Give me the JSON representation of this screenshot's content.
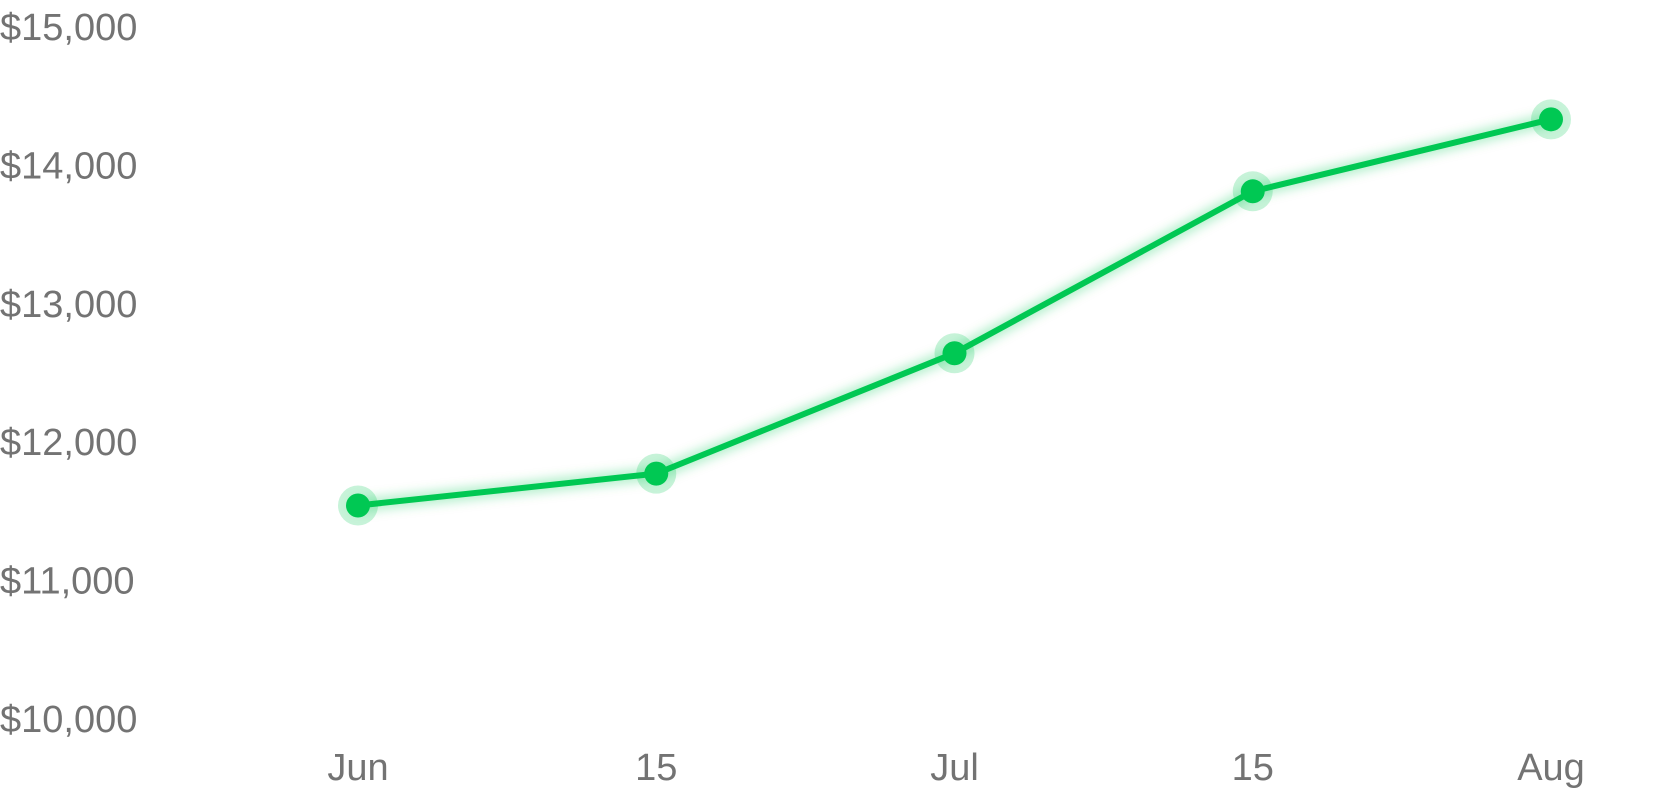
{
  "chart_data": {
    "type": "line",
    "title": "",
    "xlabel": "",
    "ylabel": "",
    "x_ticks": [
      "Jun",
      "15",
      "Jul",
      "15",
      "Aug"
    ],
    "x": [
      "Jun 1",
      "Jun 15",
      "Jul 1",
      "Jul 15",
      "Aug 1"
    ],
    "y_ticks": [
      "$15,000",
      "$14,000",
      "$13,000",
      "$12,000",
      "$11,000",
      "$10,000"
    ],
    "ylim": [
      10000,
      15000
    ],
    "grid": false,
    "legend": "none",
    "series": [
      {
        "values": [
          11550,
          11780,
          12650,
          13820,
          14340
        ],
        "color": "#00c853"
      }
    ]
  }
}
